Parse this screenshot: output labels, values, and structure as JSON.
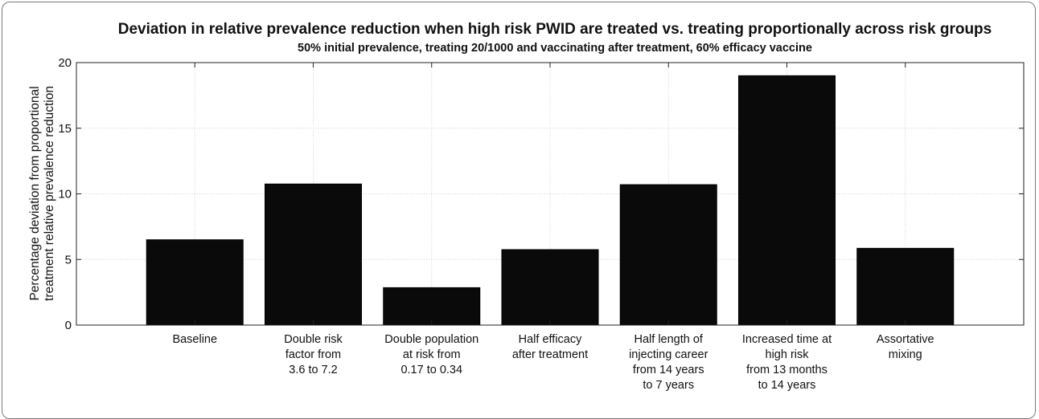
{
  "chart_data": {
    "type": "bar",
    "title": "Deviation in relative prevalence reduction when high risk PWID are treated vs. treating proportionally across risk groups",
    "subtitle": "50% initial prevalence, treating 20/1000 and vaccinating after treatment, 60% efficacy vaccine",
    "ylabel": [
      "Percentage deviation from proportional",
      "treatment relative prevalence reduction"
    ],
    "xlabel": "",
    "categories": [
      [
        "Baseline"
      ],
      [
        "Double risk",
        "factor from",
        "3.6 to 7.2"
      ],
      [
        "Double population",
        "at risk from",
        "0.17 to 0.34"
      ],
      [
        "Half efficacy",
        "after treatment"
      ],
      [
        "Half length of",
        "injecting career",
        "from 14 years",
        "to 7 years"
      ],
      [
        "Increased time at",
        "high risk",
        "from 13 months",
        "to 14 years"
      ],
      [
        "Assortative",
        "mixing"
      ]
    ],
    "values": [
      6.5,
      10.75,
      2.85,
      5.75,
      10.7,
      19.0,
      5.85
    ],
    "ylim": [
      0,
      20
    ],
    "yticks": [
      0,
      5,
      10,
      15,
      20
    ],
    "grid": true,
    "bar_color": "#0a0a0a"
  }
}
